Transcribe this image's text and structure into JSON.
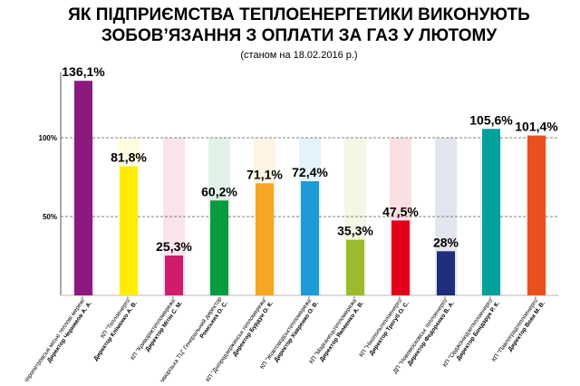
{
  "chart_data": {
    "type": "bar",
    "title": [
      "ЯК ПІДПРИЄМСТВА ТЕПЛОЕНЕРГЕТИКИ ВИКОНУЮТЬ",
      "ЗОБОВ’ЯЗАННЯ З ОПЛАТИ ЗА ГАЗ У ЛЮТОМУ"
    ],
    "subtitle": "(станом на 18.02.2016 р.)",
    "categories": [
      "КП \"Дніпропетровські міські теплові мережі\"",
      "КП \"Теплоенерго\"",
      "КП \"Криворіжтепломережа\"",
      "ДП \"Криворізька ТЦ\" Генеральний директор",
      "КП \"Дніпродзержинськ тепломережа\"",
      "КП \"Жовтоводськтепломережа\"",
      "КП \"Марганецьтепломережа\"",
      "КП \"Нікопольтеплоенерго\"",
      "ДП \"Новомосковськ теплоенерго\"",
      "КП \"Орджонікідзетеплоенерго\"",
      "КП \"Павлоградтеплоенерго\""
    ],
    "directors": [
      "Директор Чернявов А. А.",
      "Директор Кліменко А. В.",
      "Директор Мітін С. М.",
      "Ромських О. С.",
      "Директор Бурдун О. К.",
      "Директор Хавренко О. В.",
      "Директор Яковенко А. В.",
      "Директор Трегуб О. С.",
      "Директор Федоренко В. А.",
      "Директор Бондарук Р. К.",
      "Директор Вовк М. В."
    ],
    "values": [
      136.1,
      81.8,
      25.3,
      60.2,
      71.1,
      72.4,
      35.3,
      47.5,
      28,
      105.6,
      101.4
    ],
    "value_labels": [
      "136,1%",
      "81,8%",
      "25,3%",
      "60,2%",
      "71,1%",
      "72,4%",
      "35,3%",
      "47,5%",
      "28%",
      "105,6%",
      "101,4%"
    ],
    "colors": [
      "#8b1a7e",
      "#ffec00",
      "#d01c6b",
      "#0a9a3f",
      "#f5a623",
      "#1e9ad6",
      "#9bbb2c",
      "#e2001a",
      "#1f2e7a",
      "#00a19a",
      "#e8501e"
    ],
    "ylim": [
      0,
      140
    ],
    "yticks": [
      {
        "value": 50,
        "label": "50%"
      },
      {
        "value": 100,
        "label": "100%"
      }
    ]
  }
}
